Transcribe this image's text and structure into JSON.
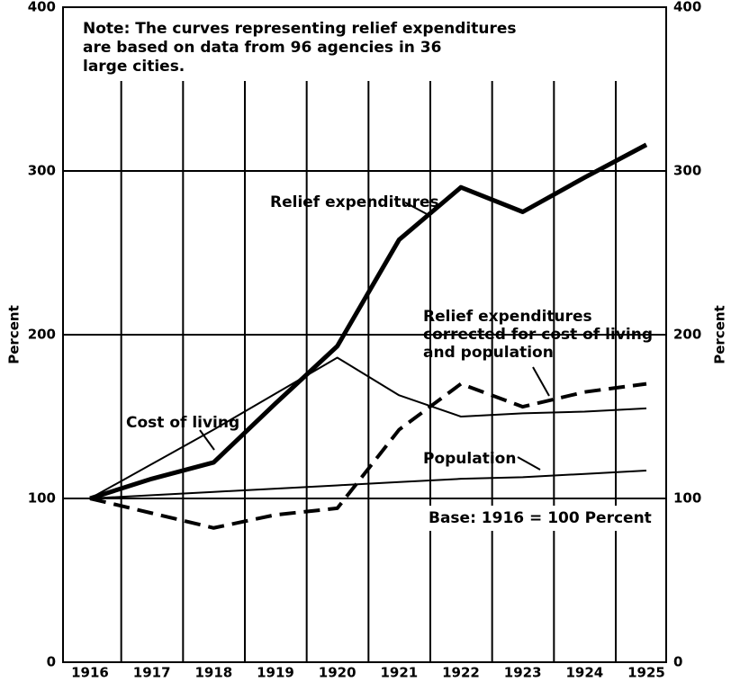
{
  "chart_data": {
    "type": "line",
    "categories": [
      "1916",
      "1917",
      "1918",
      "1919",
      "1920",
      "1921",
      "1922",
      "1923",
      "1924",
      "1925"
    ],
    "series": [
      {
        "name": "Relief expenditures",
        "color": "#000000",
        "line_width": 5,
        "dashed": false,
        "values": [
          100,
          112,
          122,
          158,
          193,
          258,
          290,
          275,
          296,
          316
        ]
      },
      {
        "name": "Cost of living",
        "color": "#000000",
        "line_width": 2,
        "dashed": false,
        "values": [
          100,
          121,
          142,
          164,
          186,
          163,
          150,
          152,
          153,
          155
        ]
      },
      {
        "name": "Population",
        "color": "#000000",
        "line_width": 2,
        "dashed": false,
        "values": [
          100,
          102,
          104,
          106,
          108,
          110,
          112,
          113,
          115,
          117
        ]
      },
      {
        "name": "Relief expenditures corrected for cost of living and population",
        "color": "#000000",
        "line_width": 4,
        "dashed": true,
        "values": [
          100,
          91,
          82,
          90,
          94,
          142,
          170,
          156,
          165,
          170
        ]
      }
    ],
    "ylabel": "Percent",
    "y2label": "Percent",
    "ylim": [
      0,
      400
    ],
    "yticks": [
      0,
      100,
      200,
      300,
      400
    ],
    "y2lim": [
      0,
      400
    ],
    "y2ticks": [
      0,
      100,
      200,
      300,
      400
    ],
    "grid": true,
    "annotations": [
      {
        "lines": [
          "Note: The curves representing relief expenditures",
          "are based on data from 96 agencies in 36",
          "large cities."
        ]
      },
      {
        "lines": [
          "Relief expenditures"
        ]
      },
      {
        "lines": [
          "Relief expenditures",
          "corrected for cost of living",
          "and population"
        ]
      },
      {
        "lines": [
          "Cost of living"
        ]
      },
      {
        "lines": [
          "Population"
        ]
      },
      {
        "lines": [
          "Base: 1916 = 100 Percent"
        ]
      }
    ]
  }
}
